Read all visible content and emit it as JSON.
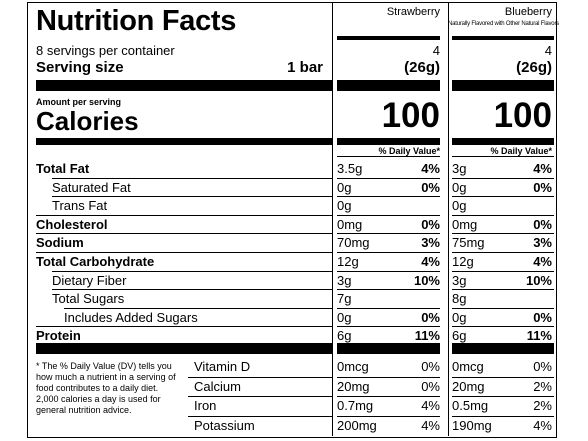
{
  "label": {
    "title": "Nutrition Facts",
    "servings_per_container": "8 servings per container",
    "serving_size_label": "Serving size",
    "serving_size_value": "1 bar",
    "amount_per_serving": "Amount per serving",
    "calories_label": "Calories",
    "nutrients": [
      {
        "name": "Total Fat",
        "bold": true
      },
      {
        "name": "Saturated Fat",
        "bold": false
      },
      {
        "name": "Trans Fat",
        "bold": false
      },
      {
        "name": "Cholesterol",
        "bold": true
      },
      {
        "name": "Sodium",
        "bold": true
      },
      {
        "name": "Total Carbohydrate",
        "bold": true
      },
      {
        "name": "Dietary Fiber",
        "bold": false
      },
      {
        "name": "Total Sugars",
        "bold": false
      },
      {
        "name": "Includes Added Sugars",
        "bold": false
      },
      {
        "name": "Protein",
        "bold": true
      }
    ],
    "vitamins": [
      "Vitamin D",
      "Calcium",
      "Iron",
      "Potassium"
    ],
    "footnote": "* The % Daily Value (DV) tells you how much a nutrient in a serving of food contributes to a daily diet. 2,000 calories a day is used for general nutrition advice."
  },
  "columns": [
    {
      "flavor": "Strawberry",
      "subnote": "",
      "servings": "4",
      "serving_grams": "(26g)",
      "calories": "100",
      "dv_header": "% Daily Value*",
      "nutrients": [
        {
          "amount": "3.5g",
          "dv": "4%"
        },
        {
          "amount": "0g",
          "dv": "0%"
        },
        {
          "amount": "0g",
          "dv": ""
        },
        {
          "amount": "0mg",
          "dv": "0%"
        },
        {
          "amount": "70mg",
          "dv": "3%"
        },
        {
          "amount": "12g",
          "dv": "4%"
        },
        {
          "amount": "3g",
          "dv": "10%"
        },
        {
          "amount": "7g",
          "dv": ""
        },
        {
          "amount": "0g",
          "dv": "0%"
        },
        {
          "amount": "6g",
          "dv": "11%"
        }
      ],
      "vitamins": [
        {
          "amount": "0mcg",
          "dv": "0%"
        },
        {
          "amount": "20mg",
          "dv": "0%"
        },
        {
          "amount": "0.7mg",
          "dv": "4%"
        },
        {
          "amount": "200mg",
          "dv": "4%"
        }
      ]
    },
    {
      "flavor": "Blueberry",
      "subnote": "Naturally Flavored with Other Natural Flavors",
      "servings": "4",
      "serving_grams": "(26g)",
      "calories": "100",
      "dv_header": "% Daily Value*",
      "nutrients": [
        {
          "amount": "3g",
          "dv": "4%"
        },
        {
          "amount": "0g",
          "dv": "0%"
        },
        {
          "amount": "0g",
          "dv": ""
        },
        {
          "amount": "0mg",
          "dv": "0%"
        },
        {
          "amount": "75mg",
          "dv": "3%"
        },
        {
          "amount": "12g",
          "dv": "4%"
        },
        {
          "amount": "3g",
          "dv": "10%"
        },
        {
          "amount": "8g",
          "dv": ""
        },
        {
          "amount": "0g",
          "dv": "0%"
        },
        {
          "amount": "6g",
          "dv": "11%"
        }
      ],
      "vitamins": [
        {
          "amount": "0mcg",
          "dv": "0%"
        },
        {
          "amount": "20mg",
          "dv": "2%"
        },
        {
          "amount": "0.5mg",
          "dv": "2%"
        },
        {
          "amount": "190mg",
          "dv": "4%"
        }
      ]
    }
  ]
}
